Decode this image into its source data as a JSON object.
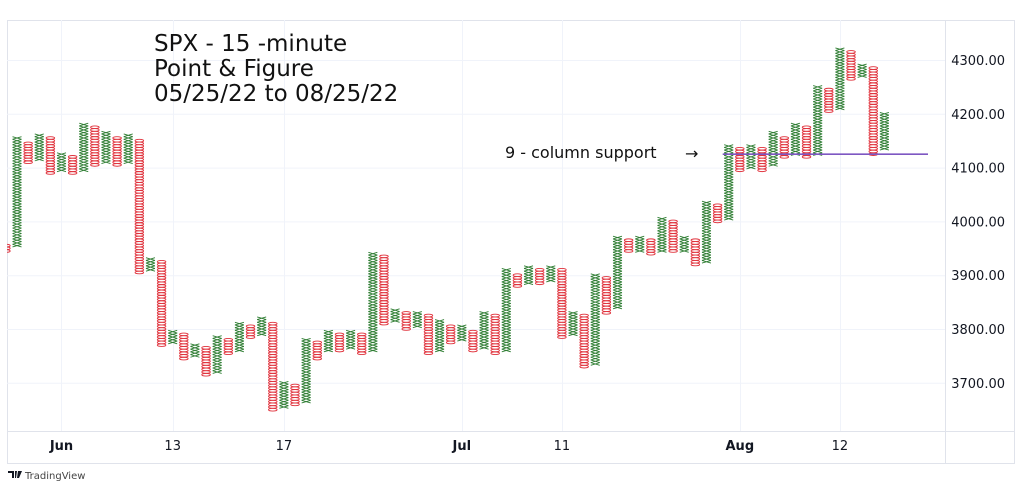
{
  "chart_data": {
    "type": "point-and-figure",
    "title_lines": [
      "SPX - 15 -minute",
      "Point & Figure",
      "05/25/22 to 08/25/22"
    ],
    "box_size": 5,
    "y_ticks": [
      "4300.00",
      "4200.00",
      "4100.00",
      "4000.00",
      "3900.00",
      "3800.00",
      "3700.00"
    ],
    "y_tick_values": [
      4300,
      4200,
      4100,
      4000,
      3900,
      3800,
      3700
    ],
    "ylim": [
      3600,
      4370
    ],
    "x_ticks": [
      {
        "label": "Jun",
        "bold": true,
        "column": 5
      },
      {
        "label": "13",
        "bold": false,
        "column": 15
      },
      {
        "label": "17",
        "bold": false,
        "column": 25
      },
      {
        "label": "Jul",
        "bold": true,
        "column": 41
      },
      {
        "label": "11",
        "bold": false,
        "column": 50
      },
      {
        "label": "Aug",
        "bold": true,
        "column": 66
      },
      {
        "label": "12",
        "bold": false,
        "column": 75
      }
    ],
    "grid": true,
    "colors": {
      "x": "#2e7d32",
      "o": "#e0323c",
      "support": "#7e57c2"
    },
    "columns": [
      {
        "t": "O",
        "low": 3945,
        "high": 3955
      },
      {
        "t": "X",
        "low": 3955,
        "high": 4155
      },
      {
        "t": "O",
        "low": 4110,
        "high": 4145
      },
      {
        "t": "X",
        "low": 4115,
        "high": 4160
      },
      {
        "t": "O",
        "low": 4090,
        "high": 4155
      },
      {
        "t": "X",
        "low": 4095,
        "high": 4125
      },
      {
        "t": "O",
        "low": 4090,
        "high": 4120
      },
      {
        "t": "X",
        "low": 4095,
        "high": 4180
      },
      {
        "t": "O",
        "low": 4105,
        "high": 4175
      },
      {
        "t": "X",
        "low": 4110,
        "high": 4165
      },
      {
        "t": "O",
        "low": 4105,
        "high": 4155
      },
      {
        "t": "X",
        "low": 4110,
        "high": 4160
      },
      {
        "t": "O",
        "low": 3905,
        "high": 4150
      },
      {
        "t": "X",
        "low": 3910,
        "high": 3930
      },
      {
        "t": "O",
        "low": 3770,
        "high": 3925
      },
      {
        "t": "X",
        "low": 3775,
        "high": 3795
      },
      {
        "t": "O",
        "low": 3745,
        "high": 3790
      },
      {
        "t": "X",
        "low": 3750,
        "high": 3770
      },
      {
        "t": "O",
        "low": 3715,
        "high": 3765
      },
      {
        "t": "X",
        "low": 3720,
        "high": 3785
      },
      {
        "t": "O",
        "low": 3755,
        "high": 3780
      },
      {
        "t": "X",
        "low": 3760,
        "high": 3810
      },
      {
        "t": "O",
        "low": 3785,
        "high": 3805
      },
      {
        "t": "X",
        "low": 3790,
        "high": 3820
      },
      {
        "t": "O",
        "low": 3650,
        "high": 3810
      },
      {
        "t": "X",
        "low": 3655,
        "high": 3700
      },
      {
        "t": "O",
        "low": 3660,
        "high": 3695
      },
      {
        "t": "X",
        "low": 3665,
        "high": 3780
      },
      {
        "t": "O",
        "low": 3745,
        "high": 3775
      },
      {
        "t": "X",
        "low": 3760,
        "high": 3795
      },
      {
        "t": "O",
        "low": 3760,
        "high": 3790
      },
      {
        "t": "X",
        "low": 3765,
        "high": 3795
      },
      {
        "t": "O",
        "low": 3755,
        "high": 3790
      },
      {
        "t": "X",
        "low": 3760,
        "high": 3940
      },
      {
        "t": "O",
        "low": 3810,
        "high": 3935
      },
      {
        "t": "X",
        "low": 3815,
        "high": 3835
      },
      {
        "t": "O",
        "low": 3800,
        "high": 3830
      },
      {
        "t": "X",
        "low": 3805,
        "high": 3830
      },
      {
        "t": "O",
        "low": 3755,
        "high": 3825
      },
      {
        "t": "X",
        "low": 3760,
        "high": 3815
      },
      {
        "t": "O",
        "low": 3775,
        "high": 3805
      },
      {
        "t": "X",
        "low": 3780,
        "high": 3805
      },
      {
        "t": "O",
        "low": 3760,
        "high": 3795
      },
      {
        "t": "X",
        "low": 3765,
        "high": 3830
      },
      {
        "t": "O",
        "low": 3755,
        "high": 3825
      },
      {
        "t": "X",
        "low": 3760,
        "high": 3910
      },
      {
        "t": "O",
        "low": 3880,
        "high": 3900
      },
      {
        "t": "X",
        "low": 3885,
        "high": 3915
      },
      {
        "t": "O",
        "low": 3885,
        "high": 3910
      },
      {
        "t": "X",
        "low": 3890,
        "high": 3915
      },
      {
        "t": "O",
        "low": 3785,
        "high": 3910
      },
      {
        "t": "X",
        "low": 3790,
        "high": 3830
      },
      {
        "t": "O",
        "low": 3730,
        "high": 3825
      },
      {
        "t": "X",
        "low": 3735,
        "high": 3900
      },
      {
        "t": "O",
        "low": 3830,
        "high": 3895
      },
      {
        "t": "X",
        "low": 3840,
        "high": 3970
      },
      {
        "t": "O",
        "low": 3945,
        "high": 3965
      },
      {
        "t": "X",
        "low": 3945,
        "high": 3970
      },
      {
        "t": "O",
        "low": 3940,
        "high": 3965
      },
      {
        "t": "X",
        "low": 3945,
        "high": 4005
      },
      {
        "t": "O",
        "low": 3945,
        "high": 4000
      },
      {
        "t": "X",
        "low": 3945,
        "high": 3970
      },
      {
        "t": "O",
        "low": 3920,
        "high": 3965
      },
      {
        "t": "X",
        "low": 3925,
        "high": 4035
      },
      {
        "t": "O",
        "low": 4000,
        "high": 4030
      },
      {
        "t": "X",
        "low": 4005,
        "high": 4140
      },
      {
        "t": "O",
        "low": 4095,
        "high": 4135
      },
      {
        "t": "X",
        "low": 4100,
        "high": 4140
      },
      {
        "t": "O",
        "low": 4095,
        "high": 4135
      },
      {
        "t": "X",
        "low": 4105,
        "high": 4165
      },
      {
        "t": "O",
        "low": 4120,
        "high": 4155
      },
      {
        "t": "X",
        "low": 4125,
        "high": 4180
      },
      {
        "t": "O",
        "low": 4120,
        "high": 4175
      },
      {
        "t": "X",
        "low": 4125,
        "high": 4250
      },
      {
        "t": "O",
        "low": 4205,
        "high": 4245
      },
      {
        "t": "X",
        "low": 4210,
        "high": 4320
      },
      {
        "t": "O",
        "low": 4265,
        "high": 4315
      },
      {
        "t": "X",
        "low": 4270,
        "high": 4290
      },
      {
        "t": "O",
        "low": 4125,
        "high": 4285
      },
      {
        "t": "X",
        "low": 4135,
        "high": 4200
      }
    ],
    "support_line": {
      "price": 4125,
      "from_column": 65,
      "extends_right": true
    },
    "annotation": {
      "text": "9 - column support",
      "arrow": "→"
    }
  },
  "branding": {
    "text": "TradingView"
  }
}
